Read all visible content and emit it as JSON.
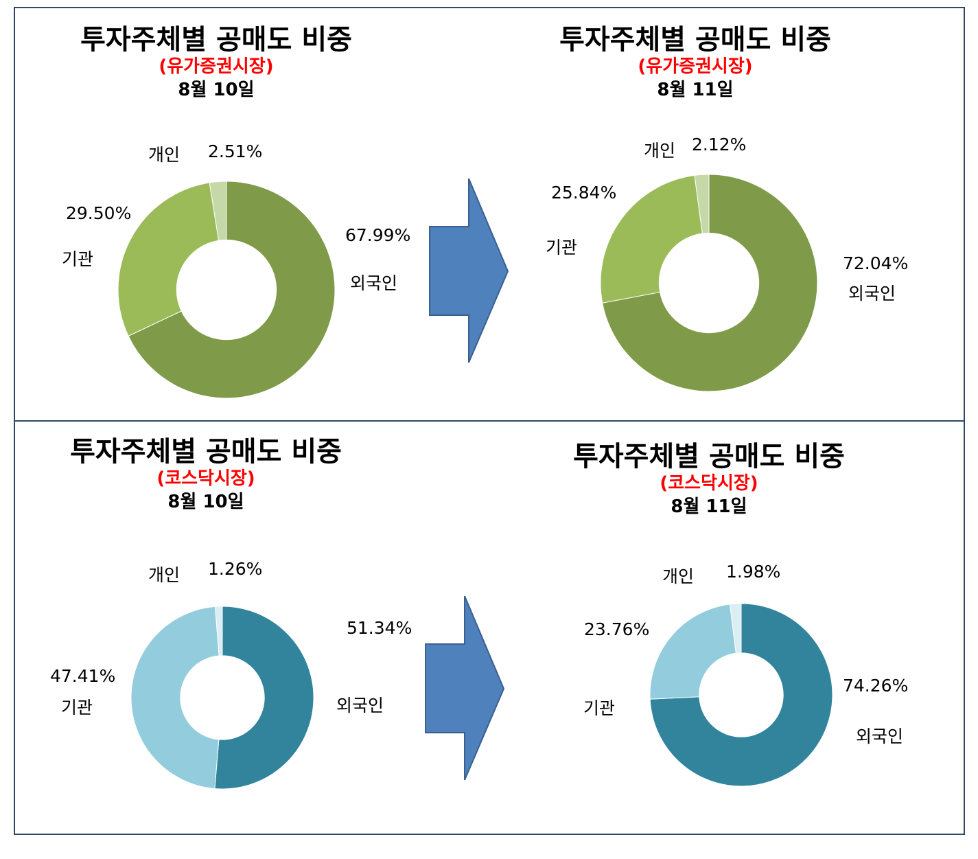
{
  "chart_data": [
    {
      "type": "pie",
      "title": "투자주체별 공매도 비중",
      "subtitle": "(유가증권시장)",
      "date": "8월 10일",
      "labels": [
        "외국인",
        "기관",
        "개인"
      ],
      "values": [
        67.99,
        29.5,
        2.51
      ],
      "value_labels": [
        "67.99%",
        "29.50%",
        "2.51%"
      ],
      "colors": [
        "#7f9b4a",
        "#9bbb59",
        "#c5d8a8"
      ]
    },
    {
      "type": "pie",
      "title": "투자주체별 공매도 비중",
      "subtitle": "(유가증권시장)",
      "date": "8월 11일",
      "labels": [
        "외국인",
        "기관",
        "개인"
      ],
      "values": [
        72.04,
        25.84,
        2.12
      ],
      "value_labels": [
        "72.04%",
        "25.84%",
        "2.12%"
      ],
      "colors": [
        "#7f9b4a",
        "#9bbb59",
        "#c5d8a8"
      ]
    },
    {
      "type": "pie",
      "title": "투자주체별 공매도 비중",
      "subtitle": "(코스닥시장)",
      "date": "8월 10일",
      "labels": [
        "외국인",
        "기관",
        "개인"
      ],
      "values": [
        51.34,
        47.41,
        1.26
      ],
      "value_labels": [
        "51.34%",
        "47.41%",
        "1.26%"
      ],
      "colors": [
        "#31849b",
        "#93cddd",
        "#dbeef3"
      ]
    },
    {
      "type": "pie",
      "title": "투자주체별 공매도 비중",
      "subtitle": "(코스닥시장)",
      "date": "8월 11일",
      "labels": [
        "외국인",
        "기관",
        "개인"
      ],
      "values": [
        74.26,
        23.76,
        1.98
      ],
      "value_labels": [
        "74.26%",
        "23.76%",
        "1.98%"
      ],
      "colors": [
        "#31849b",
        "#93cddd",
        "#dbeef3"
      ]
    }
  ],
  "arrow_color": "#4f81bd",
  "border_color": "#2f4664"
}
